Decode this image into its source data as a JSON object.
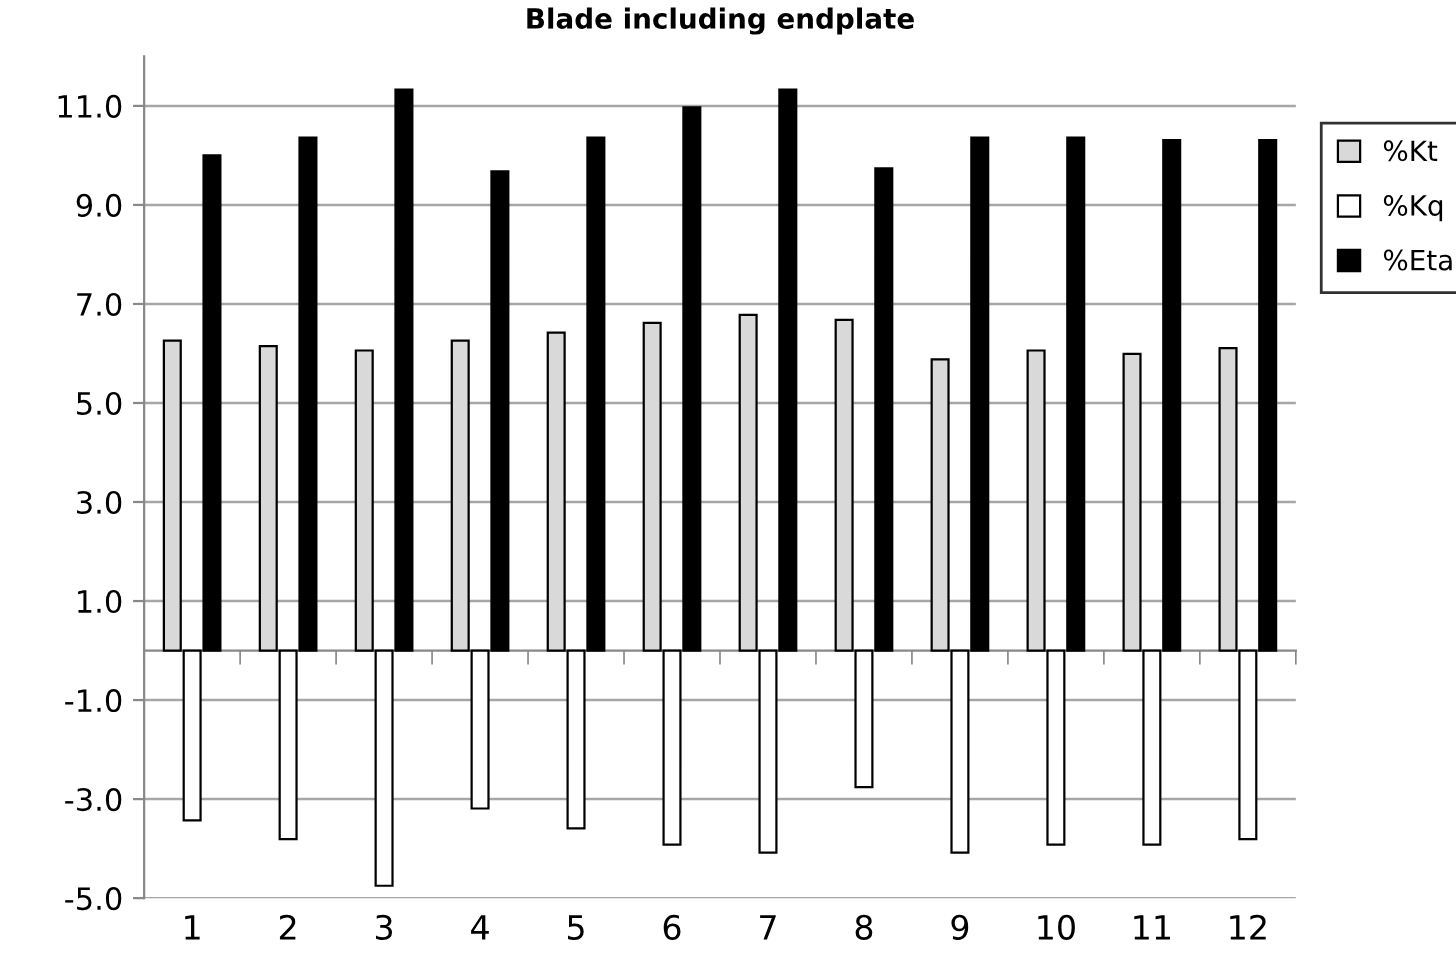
{
  "chart_data": {
    "type": "bar",
    "title": "Blade including endplate",
    "categories": [
      "1",
      "2",
      "3",
      "4",
      "5",
      "6",
      "7",
      "8",
      "9",
      "10",
      "11",
      "12"
    ],
    "series": [
      {
        "name": "%Kt",
        "color": "#d9d9d9",
        "values": [
          6.26,
          6.15,
          6.06,
          6.26,
          6.42,
          6.62,
          6.78,
          6.68,
          5.88,
          6.06,
          5.99,
          6.11
        ]
      },
      {
        "name": "%Kq",
        "color": "#ffffff",
        "values": [
          -3.43,
          -3.81,
          -4.75,
          -3.19,
          -3.59,
          -3.92,
          -4.08,
          -2.76,
          -4.08,
          -3.92,
          -3.92,
          -3.81
        ]
      },
      {
        "name": "%Eta",
        "color": "#000000",
        "values": [
          10.0,
          10.36,
          11.33,
          9.68,
          10.36,
          10.97,
          11.33,
          9.74,
          10.36,
          10.36,
          10.31,
          10.31
        ]
      }
    ],
    "ylim": [
      -5,
      12
    ],
    "yticks": [
      {
        "value": -5,
        "label": "-5.0"
      },
      {
        "value": -3,
        "label": "-3.0"
      },
      {
        "value": -1,
        "label": "-1.0"
      },
      {
        "value": 1,
        "label": "1.0"
      },
      {
        "value": 3,
        "label": "3.0"
      },
      {
        "value": 5,
        "label": "5.0"
      },
      {
        "value": 7,
        "label": "7.0"
      },
      {
        "value": 9,
        "label": "9.0"
      },
      {
        "value": 11,
        "label": "11.0"
      }
    ],
    "grid": "y",
    "legend": "right"
  }
}
